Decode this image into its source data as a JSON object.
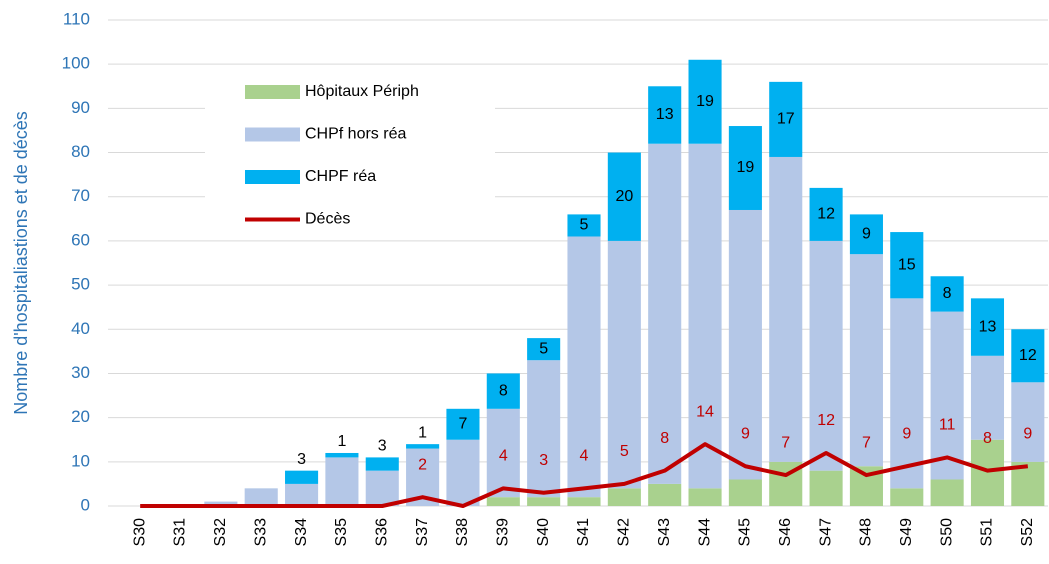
{
  "chart_data": {
    "type": "bar",
    "stacked": true,
    "y_label": "Nombre d'hospitaliastions et de décès",
    "categories": [
      "S30",
      "S31",
      "S32",
      "S33",
      "S34",
      "S35",
      "S36",
      "S37",
      "S38",
      "S39",
      "S40",
      "S41",
      "S42",
      "S43",
      "S44",
      "S45",
      "S46",
      "S47",
      "S48",
      "S49",
      "S50",
      "S51",
      "S52"
    ],
    "series": [
      {
        "name": "Hôpitaux Périph",
        "type": "bar",
        "color": "#a9d18e",
        "values": [
          0,
          0,
          0,
          0,
          0,
          0,
          0,
          0,
          0,
          2,
          2,
          2,
          4,
          5,
          4,
          6,
          10,
          8,
          9,
          4,
          6,
          15,
          10
        ]
      },
      {
        "name": "CHPf hors réa",
        "type": "bar",
        "color": "#b4c7e7",
        "values": [
          0,
          0,
          1,
          4,
          5,
          11,
          8,
          13,
          15,
          20,
          31,
          59,
          56,
          77,
          78,
          61,
          69,
          52,
          48,
          43,
          38,
          19,
          18
        ]
      },
      {
        "name": "CHPF réa",
        "type": "bar",
        "color": "#00b0f0",
        "labels": true,
        "label_color": "#000000",
        "values": [
          0,
          0,
          0,
          0,
          3,
          1,
          3,
          1,
          7,
          8,
          5,
          5,
          20,
          13,
          19,
          19,
          17,
          12,
          9,
          15,
          8,
          13,
          12
        ]
      },
      {
        "name": "Décès",
        "type": "line",
        "color": "#c00000",
        "labels": true,
        "label_color": "#c00000",
        "values": [
          0,
          0,
          0,
          0,
          0,
          0,
          0,
          2,
          0,
          4,
          3,
          4,
          5,
          8,
          14,
          9,
          7,
          12,
          7,
          9,
          11,
          8,
          9
        ]
      }
    ],
    "ylim": [
      0,
      110
    ],
    "yticks": [
      0,
      10,
      20,
      30,
      40,
      50,
      60,
      70,
      80,
      90,
      100,
      110
    ],
    "grid": true,
    "legend": "upper left",
    "axis_color": "#2e75b6"
  }
}
